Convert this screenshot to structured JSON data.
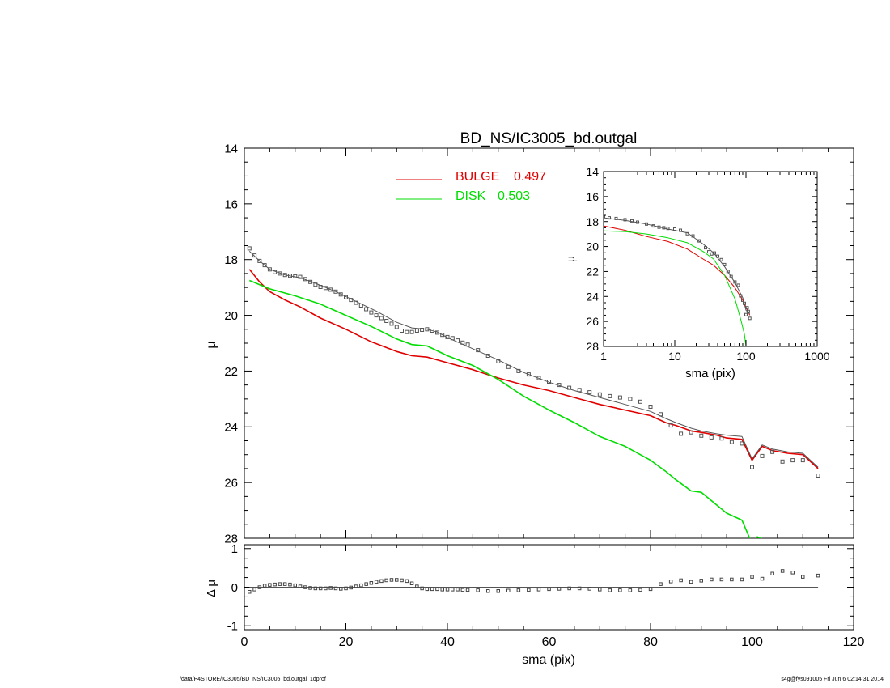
{
  "chart_data": [
    {
      "id": "main",
      "type": "line",
      "title": "BD_NS/IC3005_bd.outgal",
      "ylabel": "μ",
      "xlim": [
        0,
        120
      ],
      "ylim": [
        28,
        14
      ],
      "y_inverted": true,
      "yticks": [
        14,
        16,
        18,
        20,
        22,
        24,
        26,
        28
      ],
      "legend": {
        "placement": "top-center",
        "entries": [
          {
            "label": "BULGE",
            "value": "0.497",
            "color": "#e00000"
          },
          {
            "label": "DISK",
            "value": "0.503",
            "color": "#00dd00"
          }
        ]
      },
      "series": [
        {
          "name": "BULGE",
          "style": "line",
          "color": "#e00000",
          "x": [
            1,
            3,
            5,
            8,
            11,
            15,
            20,
            25,
            30,
            33,
            36,
            40,
            45,
            50,
            55,
            60,
            65,
            70,
            75,
            80,
            83,
            85,
            88,
            90,
            93,
            95,
            98,
            100,
            102,
            104,
            107,
            110,
            113
          ],
          "y": [
            18.35,
            18.8,
            19.15,
            19.45,
            19.7,
            20.1,
            20.5,
            20.95,
            21.3,
            21.45,
            21.5,
            21.7,
            21.95,
            22.25,
            22.5,
            22.7,
            22.95,
            23.2,
            23.4,
            23.6,
            23.85,
            23.95,
            24.15,
            24.2,
            24.3,
            24.4,
            24.45,
            25.2,
            24.7,
            24.85,
            24.95,
            25.0,
            25.5
          ]
        },
        {
          "name": "DISK",
          "style": "line",
          "color": "#00dd00",
          "x": [
            1,
            5,
            10,
            15,
            20,
            25,
            30,
            33,
            36,
            40,
            45,
            50,
            55,
            60,
            65,
            70,
            75,
            80,
            83,
            85,
            88,
            90,
            93,
            95,
            98,
            100,
            101,
            103
          ],
          "y": [
            18.75,
            19.05,
            19.3,
            19.6,
            20.0,
            20.4,
            20.85,
            21.05,
            21.1,
            21.45,
            21.8,
            22.3,
            22.9,
            23.4,
            23.85,
            24.35,
            24.7,
            25.2,
            25.6,
            25.9,
            26.3,
            26.35,
            26.8,
            27.1,
            27.35,
            28.2,
            27.95,
            28.1
          ]
        },
        {
          "name": "model",
          "style": "line",
          "color": "#555555",
          "x": [
            1,
            3,
            5,
            8,
            11,
            14,
            18,
            22,
            26,
            30,
            33,
            36,
            38,
            40,
            45,
            50,
            55,
            60,
            65,
            70,
            75,
            80,
            83,
            85,
            88,
            90,
            93,
            95,
            98,
            100,
            102,
            104,
            107,
            110,
            113
          ],
          "y": [
            17.7,
            18.05,
            18.35,
            18.55,
            18.65,
            18.85,
            19.15,
            19.5,
            19.85,
            20.25,
            20.45,
            20.5,
            20.6,
            20.8,
            21.2,
            21.6,
            22.05,
            22.4,
            22.7,
            22.95,
            23.2,
            23.45,
            23.7,
            23.85,
            24.05,
            24.15,
            24.25,
            24.3,
            24.35,
            25.15,
            24.65,
            24.8,
            24.9,
            24.95,
            25.45
          ]
        },
        {
          "name": "data",
          "style": "markers",
          "color": "#555555",
          "x": [
            1,
            2,
            3,
            4,
            5,
            6,
            7,
            8,
            9,
            10,
            11,
            12,
            13,
            14,
            15,
            16,
            17,
            18,
            19,
            20,
            21,
            22,
            23,
            24,
            25,
            26,
            27,
            28,
            29,
            30,
            31,
            32,
            33,
            34,
            35,
            36,
            37,
            38,
            39,
            40,
            41,
            42,
            43,
            44,
            46,
            48,
            50,
            52,
            54,
            56,
            58,
            60,
            62,
            64,
            66,
            68,
            70,
            72,
            74,
            76,
            78,
            80,
            82,
            84,
            86,
            88,
            90,
            92,
            94,
            96,
            98,
            100,
            102,
            104,
            106,
            108,
            110,
            113
          ],
          "y": [
            17.6,
            17.85,
            18.05,
            18.2,
            18.35,
            18.45,
            18.5,
            18.55,
            18.58,
            18.6,
            18.62,
            18.7,
            18.8,
            18.9,
            18.98,
            19.02,
            19.08,
            19.15,
            19.25,
            19.35,
            19.45,
            19.55,
            19.65,
            19.78,
            19.9,
            20.0,
            20.1,
            20.2,
            20.3,
            20.42,
            20.55,
            20.6,
            20.6,
            20.55,
            20.52,
            20.5,
            20.55,
            20.62,
            20.7,
            20.78,
            20.82,
            20.9,
            20.98,
            21.05,
            21.25,
            21.45,
            21.65,
            21.85,
            22.0,
            22.12,
            22.25,
            22.38,
            22.5,
            22.6,
            22.68,
            22.76,
            22.84,
            22.9,
            22.95,
            23.0,
            23.1,
            23.28,
            23.55,
            23.95,
            24.25,
            24.2,
            24.32,
            24.38,
            24.42,
            24.55,
            24.6,
            25.45,
            25.05,
            24.9,
            25.25,
            25.2,
            25.2,
            25.75
          ]
        }
      ]
    },
    {
      "id": "residual",
      "type": "scatter",
      "xlabel": "sma (pix)",
      "ylabel": "Δ μ",
      "xlim": [
        0,
        120
      ],
      "ylim": [
        -1.1,
        1.1
      ],
      "xticks": [
        0,
        20,
        40,
        60,
        80,
        100,
        120
      ],
      "yticks": [
        -1,
        0,
        1
      ],
      "zero_line": true,
      "series": [
        {
          "name": "residual",
          "style": "markers",
          "color": "#444444",
          "x": [
            1,
            2,
            3,
            4,
            5,
            6,
            7,
            8,
            9,
            10,
            11,
            12,
            13,
            14,
            15,
            16,
            17,
            18,
            19,
            20,
            21,
            22,
            23,
            24,
            25,
            26,
            27,
            28,
            29,
            30,
            31,
            32,
            33,
            34,
            35,
            36,
            37,
            38,
            39,
            40,
            41,
            42,
            43,
            44,
            46,
            48,
            50,
            52,
            54,
            56,
            58,
            60,
            62,
            64,
            66,
            68,
            70,
            72,
            74,
            76,
            78,
            80,
            82,
            84,
            86,
            88,
            90,
            92,
            94,
            96,
            98,
            100,
            102,
            104,
            106,
            108,
            110,
            113
          ],
          "y": [
            -0.12,
            -0.06,
            0.0,
            0.04,
            0.06,
            0.07,
            0.08,
            0.08,
            0.07,
            0.05,
            0.02,
            0.0,
            -0.02,
            -0.03,
            -0.03,
            -0.03,
            -0.02,
            -0.03,
            -0.04,
            -0.03,
            -0.01,
            0.02,
            0.05,
            0.08,
            0.11,
            0.14,
            0.16,
            0.18,
            0.19,
            0.19,
            0.18,
            0.16,
            0.1,
            0.02,
            -0.03,
            -0.05,
            -0.05,
            -0.05,
            -0.06,
            -0.06,
            -0.06,
            -0.06,
            -0.07,
            -0.07,
            -0.08,
            -0.1,
            -0.1,
            -0.09,
            -0.08,
            -0.07,
            -0.06,
            -0.05,
            -0.04,
            -0.03,
            -0.03,
            -0.04,
            -0.06,
            -0.08,
            -0.08,
            -0.08,
            -0.07,
            -0.05,
            0.08,
            0.15,
            0.18,
            0.14,
            0.17,
            0.2,
            0.2,
            0.2,
            0.2,
            0.27,
            0.22,
            0.35,
            0.42,
            0.38,
            0.27,
            0.3
          ]
        }
      ]
    },
    {
      "id": "inset",
      "type": "line",
      "xlabel": "sma (pix)",
      "ylabel": "μ",
      "x_scale": "log",
      "xlim": [
        1,
        1000
      ],
      "ylim": [
        28,
        14
      ],
      "y_inverted": true,
      "xticks": [
        1,
        10,
        100,
        1000
      ],
      "yticks": [
        14,
        16,
        18,
        20,
        22,
        24,
        26,
        28
      ],
      "series": [
        {
          "name": "BULGE",
          "style": "line",
          "color": "#e00000",
          "x": [
            1,
            2,
            4,
            8,
            15,
            25,
            35,
            50,
            70,
            90,
            113
          ],
          "y": [
            18.35,
            18.7,
            19.2,
            19.6,
            20.2,
            21.0,
            21.5,
            22.3,
            23.3,
            24.3,
            25.5
          ]
        },
        {
          "name": "DISK",
          "style": "line",
          "color": "#00dd00",
          "x": [
            1,
            2,
            4,
            8,
            15,
            25,
            35,
            50,
            70,
            85,
            95,
            100,
            103
          ],
          "y": [
            18.75,
            18.8,
            19.0,
            19.3,
            19.7,
            20.4,
            21.0,
            22.3,
            24.2,
            25.9,
            27.0,
            28.0,
            28.0
          ]
        },
        {
          "name": "model",
          "style": "line",
          "color": "#555555",
          "x": [
            1,
            2,
            4,
            8,
            15,
            25,
            35,
            50,
            70,
            90,
            100,
            113
          ],
          "y": [
            17.7,
            17.9,
            18.2,
            18.6,
            18.9,
            19.8,
            20.5,
            21.6,
            22.9,
            24.1,
            25.1,
            25.4
          ]
        },
        {
          "name": "data",
          "style": "markers",
          "color": "#555555",
          "x": [
            1,
            1.2,
            1.5,
            2,
            2.5,
            3,
            4,
            5,
            6,
            7,
            8,
            10,
            12,
            15,
            18,
            22,
            27,
            30,
            33,
            36,
            40,
            45,
            50,
            56,
            62,
            70,
            78,
            84,
            90,
            95,
            100,
            104,
            108,
            113
          ],
          "y": [
            17.6,
            17.7,
            17.75,
            17.85,
            17.95,
            18.05,
            18.2,
            18.35,
            18.45,
            18.5,
            18.55,
            18.6,
            18.7,
            18.98,
            19.15,
            19.55,
            20.1,
            20.42,
            20.6,
            20.52,
            20.78,
            21.05,
            21.45,
            22.0,
            22.4,
            22.84,
            23.1,
            23.95,
            24.3,
            24.55,
            25.45,
            24.9,
            25.2,
            25.75
          ]
        }
      ]
    }
  ],
  "footer": {
    "path": "/data/P4STORE/IC3005/BD_NS/IC3005_bd.outgal_1dprof",
    "stamp": "s4g@fys091005  Fri Jun  6 02:14:31 2014"
  }
}
